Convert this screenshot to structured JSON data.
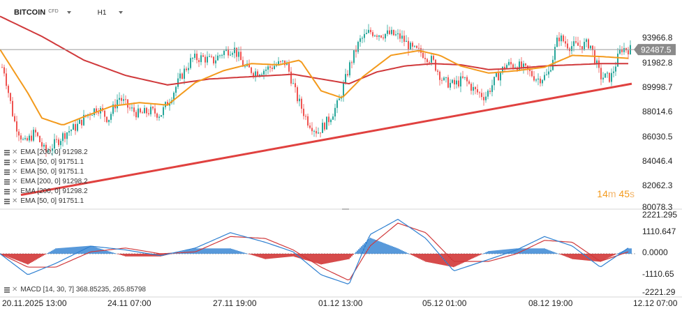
{
  "header": {
    "symbol": "BITCOIN",
    "instrument_type": "CFD",
    "timeframe": "H1"
  },
  "price_axis": {
    "labels": [
      "93966.8",
      "91982.8",
      "89998.7",
      "88014.6",
      "86030.5",
      "84046.4",
      "82062.3",
      "80078.3"
    ],
    "current_price": "92487.5"
  },
  "macd_axis": {
    "labels": [
      "2221.295",
      "1110.647",
      "0.0000",
      "-1110.65",
      "-2221.29"
    ]
  },
  "time_axis": {
    "labels": [
      "20.11.2025  13:00",
      "24.11  07:00",
      "27.11  19:00",
      "01.12  13:00",
      "05.12  01:00",
      "08.12  19:00",
      "12.12  07:00"
    ]
  },
  "legend": [
    {
      "text": "EMA [200,  0]  91298.2"
    },
    {
      "text": "EMA [50,  0]  91751.1"
    },
    {
      "text": "EMA [50,  0]  91751.1"
    },
    {
      "text": "EMA [200,  0]  91298.2"
    },
    {
      "text": "EMA [200,  0]  91298.2"
    },
    {
      "text": "EMA [50,  0]  91751.1"
    }
  ],
  "macd_legend": "MACD [14,  30,  7]  368.85235,   265.85798",
  "timer": {
    "minutes": "14",
    "m": "m",
    "seconds": "45",
    "s": "s"
  },
  "colors": {
    "bull": "#26a69a",
    "bear": "#ef5350",
    "ema50": "#f39a1c",
    "ema200": "#d0393b",
    "trendline": "#e0413f",
    "macd": "#2f80d1",
    "signal": "#d0393b",
    "hist_pos": "#2f80d1",
    "hist_neg": "#cc1f1f",
    "price_tag": "#8a8a8a"
  },
  "chart_data": {
    "type": "line",
    "title": "BITCOIN",
    "timeframe": "H1",
    "ylim": [
      79000,
      95500
    ],
    "series": [
      {
        "name": "EMA [50, 0]",
        "x": [
          0,
          40,
          60,
          90,
          120,
          160,
          200,
          240,
          280,
          320,
          360,
          400,
          430,
          460,
          490,
          520,
          560,
          600,
          630,
          660,
          700,
          740,
          780,
          820,
          860,
          900
        ],
        "values": [
          92500,
          88800,
          86700,
          86100,
          86800,
          87700,
          88000,
          87800,
          89700,
          90700,
          91300,
          91200,
          91600,
          89000,
          88400,
          90200,
          92000,
          92400,
          92000,
          91100,
          90500,
          90700,
          91000,
          92000,
          91900,
          91751
        ]
      },
      {
        "name": "EMA [200, 0]",
        "x": [
          0,
          60,
          120,
          180,
          240,
          300,
          360,
          420,
          460,
          500,
          540,
          580,
          620,
          660,
          700,
          740,
          780,
          820,
          860,
          900
        ],
        "values": [
          95300,
          93600,
          91600,
          90300,
          89500,
          90000,
          90200,
          90400,
          90000,
          89600,
          90600,
          91100,
          91300,
          91200,
          90800,
          90900,
          91100,
          91200,
          91300,
          91298
        ]
      },
      {
        "name": "Trendline",
        "x": [
          30,
          905
        ],
        "values": [
          80200,
          89600
        ]
      }
    ],
    "ohlc_close": {
      "x": [
        5,
        20,
        35,
        50,
        65,
        80,
        95,
        110,
        125,
        140,
        155,
        170,
        185,
        200,
        215,
        230,
        245,
        260,
        275,
        290,
        305,
        320,
        335,
        350,
        365,
        380,
        395,
        410,
        425,
        440,
        455,
        470,
        485,
        500,
        515,
        530,
        545,
        560,
        575,
        590,
        605,
        620,
        635,
        650,
        665,
        680,
        695,
        710,
        725,
        740,
        755,
        770,
        785,
        800,
        815,
        830,
        845,
        860,
        875,
        890,
        905
      ],
      "values": [
        91000,
        86500,
        84500,
        85500,
        83800,
        84600,
        85500,
        86000,
        87000,
        87600,
        86600,
        88500,
        87500,
        87000,
        87300,
        87000,
        88500,
        90300,
        91700,
        91800,
        91500,
        92300,
        92600,
        91000,
        90600,
        90800,
        91200,
        91400,
        88500,
        86500,
        85500,
        86500,
        88000,
        91000,
        93200,
        94000,
        93800,
        93800,
        93500,
        92500,
        92200,
        91500,
        89800,
        89500,
        90000,
        89000,
        88500,
        90000,
        91200,
        91200,
        90700,
        90000,
        90300,
        93600,
        92800,
        92800,
        93000,
        90200,
        90100,
        92600,
        92487
      ]
    },
    "macd": {
      "ylim": [
        -2221.29,
        2221.295
      ],
      "x": [
        0,
        40,
        80,
        130,
        180,
        230,
        280,
        330,
        380,
        420,
        460,
        500,
        530,
        570,
        610,
        650,
        700,
        740,
        780,
        820,
        860,
        900
      ],
      "macd": [
        0,
        -1100,
        -500,
        400,
        200,
        -100,
        300,
        1100,
        600,
        100,
        -1100,
        -1600,
        1000,
        1800,
        800,
        -900,
        -300,
        200,
        900,
        400,
        -700,
        300
      ],
      "signal": [
        0,
        -700,
        -700,
        100,
        300,
        0,
        100,
        900,
        800,
        200,
        -700,
        -1400,
        400,
        1600,
        1100,
        -400,
        -400,
        0,
        700,
        600,
        -400,
        100
      ]
    },
    "time_labels": [
      "20.11.2025  13:00",
      "24.11  07:00",
      "27.11  19:00",
      "01.12  13:00",
      "05.12  01:00",
      "08.12  19:00",
      "12.12  07:00"
    ],
    "grid": false
  }
}
